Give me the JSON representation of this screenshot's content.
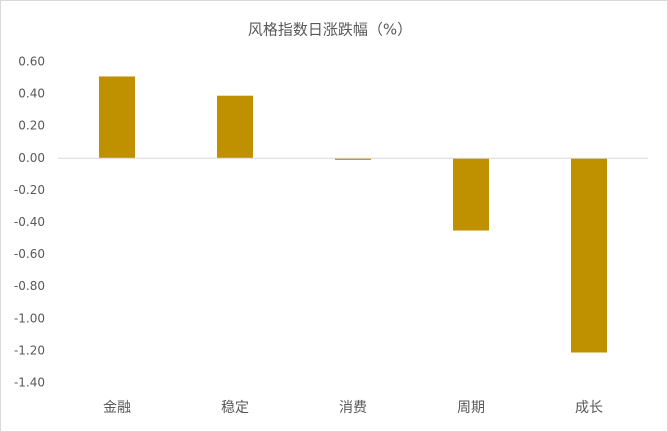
{
  "chart_data": {
    "type": "bar",
    "title": "风格指数日涨跌幅（%）",
    "categories": [
      "金融",
      "稳定",
      "消费",
      "周期",
      "成长"
    ],
    "values": [
      0.51,
      0.39,
      -0.01,
      -0.45,
      -1.21
    ],
    "color": "#bf9000",
    "ylim": [
      -1.4,
      0.6
    ],
    "yticks": [
      {
        "value": 0.6,
        "label": "0.60"
      },
      {
        "value": 0.4,
        "label": "0.40"
      },
      {
        "value": 0.2,
        "label": "0.20"
      },
      {
        "value": 0,
        "label": "0.00"
      },
      {
        "value": -0.2,
        "label": "-0.20"
      },
      {
        "value": -0.4,
        "label": "-0.40"
      },
      {
        "value": -0.6,
        "label": "-0.60"
      },
      {
        "value": -0.8,
        "label": "-0.80"
      },
      {
        "value": -1,
        "label": "-1.00"
      },
      {
        "value": -1.2,
        "label": "-1.20"
      },
      {
        "value": -1.4,
        "label": "-1.40"
      }
    ],
    "grid": false
  }
}
